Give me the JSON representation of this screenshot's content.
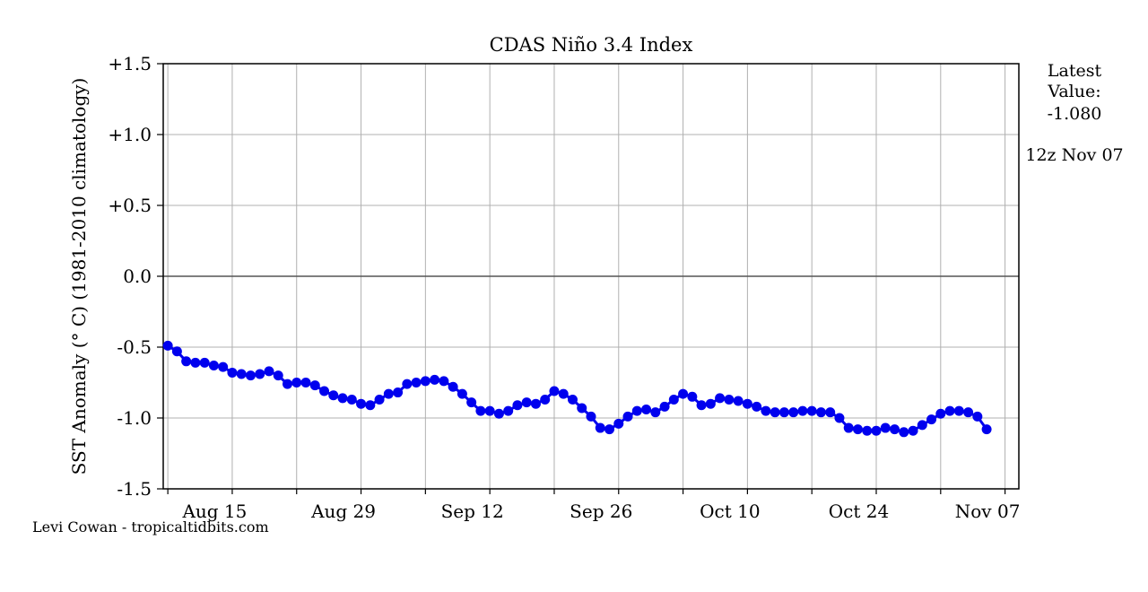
{
  "chart_data": {
    "type": "line",
    "title": "CDAS Niño 3.4 Index",
    "xlabel": "",
    "ylabel": "SST Anomaly (° C) (1981-2010 climatology)",
    "ylim": [
      -1.5,
      1.5
    ],
    "yticks": [
      1.5,
      1.0,
      0.5,
      0.0,
      -0.5,
      -1.0,
      -1.5
    ],
    "ytick_labels": [
      "+1.5",
      "+1.0",
      "+0.5",
      "0.0",
      "-0.5",
      "-1.0",
      "-1.5"
    ],
    "xlim": [
      -5.5,
      87.5
    ],
    "xticks": [
      0,
      14,
      28,
      42,
      56,
      70,
      84
    ],
    "xtick_labels": [
      "Aug 15",
      "Aug 29",
      "Sep 12",
      "Sep 26",
      "Oct 10",
      "Oct 24",
      "Nov 07"
    ],
    "grid": true,
    "zero_line": true,
    "series": [
      {
        "name": "",
        "color": "#0000ee",
        "x": [
          -5,
          -4,
          -3,
          -2,
          -1,
          0,
          1,
          2,
          3,
          4,
          5,
          6,
          7,
          8,
          9,
          10,
          11,
          12,
          13,
          14,
          15,
          16,
          17,
          18,
          19,
          20,
          21,
          22,
          23,
          24,
          25,
          26,
          27,
          28,
          29,
          30,
          31,
          32,
          33,
          34,
          35,
          36,
          37,
          38,
          39,
          40,
          41,
          42,
          43,
          44,
          45,
          46,
          47,
          48,
          49,
          50,
          51,
          52,
          53,
          54,
          55,
          56,
          57,
          58,
          59,
          60,
          61,
          62,
          63,
          64,
          65,
          66,
          67,
          68,
          69,
          70,
          71,
          72,
          73,
          74,
          75,
          76,
          77,
          78,
          79,
          80,
          81,
          82,
          83,
          84
        ],
        "values": [
          -0.49,
          -0.53,
          -0.6,
          -0.61,
          -0.61,
          -0.63,
          -0.64,
          -0.68,
          -0.69,
          -0.7,
          -0.69,
          -0.67,
          -0.7,
          -0.76,
          -0.75,
          -0.75,
          -0.77,
          -0.81,
          -0.84,
          -0.86,
          -0.87,
          -0.9,
          -0.91,
          -0.87,
          -0.83,
          -0.82,
          -0.76,
          -0.75,
          -0.74,
          -0.73,
          -0.74,
          -0.78,
          -0.83,
          -0.89,
          -0.95,
          -0.95,
          -0.97,
          -0.95,
          -0.91,
          -0.89,
          -0.9,
          -0.87,
          -0.81,
          -0.83,
          -0.87,
          -0.93,
          -0.99,
          -1.07,
          -1.08,
          -1.04,
          -0.99,
          -0.95,
          -0.94,
          -0.96,
          -0.92,
          -0.87,
          -0.83,
          -0.85,
          -0.91,
          -0.9,
          -0.86,
          -0.87,
          -0.88,
          -0.9,
          -0.92,
          -0.95,
          -0.96,
          -0.96,
          -0.96,
          -0.95,
          -0.95,
          -0.96,
          -0.96,
          -1.0,
          -1.07,
          -1.08,
          -1.09,
          -1.09,
          -1.07,
          -1.08,
          -1.1,
          -1.09,
          -1.05,
          -1.01,
          -0.97,
          -0.95,
          -0.95,
          -0.96,
          -0.99,
          -1.08
        ]
      }
    ]
  },
  "side_panel": {
    "latest_label": "Latest Value:",
    "latest_value": "-1.080",
    "valid_time": "12z Nov 07"
  },
  "credit": "Levi Cowan - tropicaltidbits.com"
}
